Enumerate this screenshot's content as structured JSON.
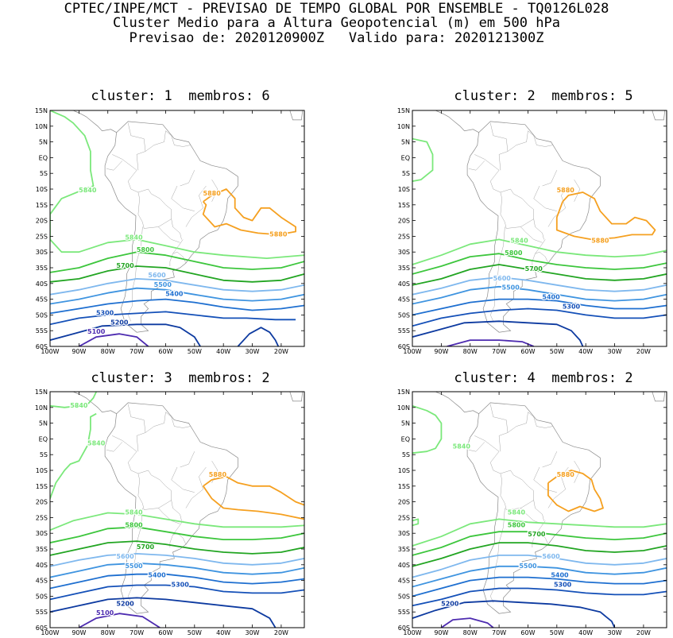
{
  "header": {
    "line1": "CPTEC/INPE/MCT - PREVISAO DE TEMPO GLOBAL POR ENSEMBLE - TQ0126L028",
    "line2": "Cluster Medio para a Altura Geopotencial (m) em 500 hPa",
    "line3": "Previsao de: 2020120900Z   Valido para: 2020121300Z"
  },
  "axes": {
    "lat_labels": [
      "15N",
      "10N",
      "5N",
      "EQ",
      "5S",
      "10S",
      "15S",
      "20S",
      "25S",
      "30S",
      "35S",
      "40S",
      "45S",
      "50S",
      "55S",
      "60S"
    ],
    "lon_labels": [
      "100W",
      "90W",
      "80W",
      "70W",
      "60W",
      "50W",
      "40W",
      "30W",
      "20W"
    ]
  },
  "contour_colors": {
    "5880": "#f5a020",
    "5840": "#7be87b",
    "5800": "#3dc63d",
    "5700": "#22a522",
    "5600": "#7fb8ee",
    "5500": "#3f94e0",
    "5400": "#1e6fd0",
    "5300": "#1450b8",
    "5200": "#0d3aa0",
    "5100": "#4d2bb0"
  },
  "panels": [
    {
      "title": "cluster: 1  membros: 6",
      "labels": [
        {
          "text": "5840",
          "level": "5840",
          "lon": -87,
          "lat": -11
        },
        {
          "text": "5880",
          "level": "5880",
          "lon": -44,
          "lat": -12
        },
        {
          "text": "5880",
          "level": "5880",
          "lon": -21,
          "lat": -25
        },
        {
          "text": "5840",
          "level": "5840",
          "lon": -71,
          "lat": -26
        },
        {
          "text": "5800",
          "level": "5800",
          "lon": -67,
          "lat": -30
        },
        {
          "text": "5700",
          "level": "5700",
          "lon": -74,
          "lat": -35
        },
        {
          "text": "5600",
          "level": "5600",
          "lon": -63,
          "lat": -38
        },
        {
          "text": "5500",
          "level": "5500",
          "lon": -61,
          "lat": -41
        },
        {
          "text": "5400",
          "level": "5400",
          "lon": -57,
          "lat": -44
        },
        {
          "text": "5300",
          "level": "5300",
          "lon": -81,
          "lat": -50
        },
        {
          "text": "5200",
          "level": "5200",
          "lon": -76,
          "lat": -53
        },
        {
          "text": "5100",
          "level": "5100",
          "lon": -84,
          "lat": -56
        }
      ]
    },
    {
      "title": "cluster: 2  membros: 5",
      "labels": [
        {
          "text": "5880",
          "level": "5880",
          "lon": -47,
          "lat": -11
        },
        {
          "text": "5880",
          "level": "5880",
          "lon": -35,
          "lat": -27
        },
        {
          "text": "5840",
          "level": "5840",
          "lon": -63,
          "lat": -27
        },
        {
          "text": "5800",
          "level": "5800",
          "lon": -65,
          "lat": -31
        },
        {
          "text": "5700",
          "level": "5700",
          "lon": -58,
          "lat": -36
        },
        {
          "text": "5600",
          "level": "5600",
          "lon": -69,
          "lat": -39
        },
        {
          "text": "5500",
          "level": "5500",
          "lon": -66,
          "lat": -42
        },
        {
          "text": "5400",
          "level": "5400",
          "lon": -52,
          "lat": -45
        },
        {
          "text": "5300",
          "level": "5300",
          "lon": -45,
          "lat": -48
        }
      ]
    },
    {
      "title": "cluster: 3  membros: 2",
      "labels": [
        {
          "text": "5840",
          "level": "5840",
          "lon": -90,
          "lat": 10
        },
        {
          "text": "5840",
          "level": "5840",
          "lon": -84,
          "lat": -2
        },
        {
          "text": "5880",
          "level": "5880",
          "lon": -42,
          "lat": -12
        },
        {
          "text": "5840",
          "level": "5840",
          "lon": -71,
          "lat": -24
        },
        {
          "text": "5800",
          "level": "5800",
          "lon": -71,
          "lat": -28
        },
        {
          "text": "5700",
          "level": "5700",
          "lon": -67,
          "lat": -35
        },
        {
          "text": "5600",
          "level": "5600",
          "lon": -74,
          "lat": -38
        },
        {
          "text": "5500",
          "level": "5500",
          "lon": -71,
          "lat": -41
        },
        {
          "text": "5400",
          "level": "5400",
          "lon": -63,
          "lat": -44
        },
        {
          "text": "5300",
          "level": "5300",
          "lon": -55,
          "lat": -47
        },
        {
          "text": "5200",
          "level": "5200",
          "lon": -74,
          "lat": -53
        },
        {
          "text": "5100",
          "level": "5100",
          "lon": -81,
          "lat": -56
        }
      ]
    },
    {
      "title": "cluster: 4  membros: 2",
      "labels": [
        {
          "text": "5840",
          "level": "5840",
          "lon": -83,
          "lat": -3
        },
        {
          "text": "5880",
          "level": "5880",
          "lon": -47,
          "lat": -12
        },
        {
          "text": "5840",
          "level": "5840",
          "lon": -64,
          "lat": -24
        },
        {
          "text": "5800",
          "level": "5800",
          "lon": -64,
          "lat": -28
        },
        {
          "text": "5700",
          "level": "5700",
          "lon": -57,
          "lat": -31
        },
        {
          "text": "5600",
          "level": "5600",
          "lon": -52,
          "lat": -38
        },
        {
          "text": "5500",
          "level": "5500",
          "lon": -60,
          "lat": -41
        },
        {
          "text": "5400",
          "level": "5400",
          "lon": -49,
          "lat": -44
        },
        {
          "text": "5300",
          "level": "5300",
          "lon": -48,
          "lat": -47
        },
        {
          "text": "5200",
          "level": "5200",
          "lon": -87,
          "lat": -53
        }
      ]
    }
  ]
}
